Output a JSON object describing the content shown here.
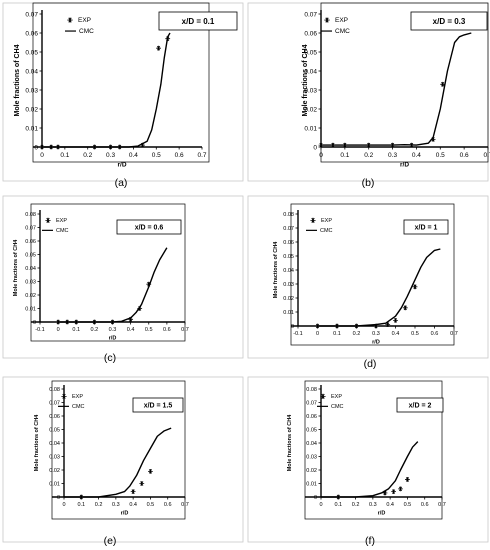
{
  "chart_data": [
    {
      "type": "line",
      "label": "(a)",
      "annotation": "x/D = 0.1",
      "ylabel": "Mole fractions of CH4",
      "xlabel": "r/D",
      "xlim": [
        0,
        0.7
      ],
      "ylim": [
        0,
        0.07
      ],
      "xticks": [
        "0",
        "0.1",
        "0.2",
        "0.3",
        "0.4",
        "0.5",
        "0.6",
        "0.7"
      ],
      "yticks": [
        "0",
        "0.01",
        "0.02",
        "0.03",
        "0.04",
        "0.05",
        "0.06",
        "0.07"
      ],
      "legend": [
        "EXP",
        "CMC"
      ],
      "legend_position": "top-left",
      "series": [
        {
          "name": "EXP",
          "marker": "star",
          "x": [
            0,
            0.04,
            0.07,
            0.23,
            0.3,
            0.34,
            0.44,
            0.51,
            0.55
          ],
          "y": [
            0,
            0,
            0,
            0,
            0,
            0,
            0.001,
            0.052,
            0.057
          ]
        },
        {
          "name": "CMC",
          "x": [
            0,
            0.1,
            0.2,
            0.3,
            0.38,
            0.42,
            0.46,
            0.48,
            0.5,
            0.52,
            0.535,
            0.55,
            0.56
          ],
          "y": [
            0,
            0,
            0,
            0,
            0,
            0.0005,
            0.003,
            0.009,
            0.02,
            0.033,
            0.047,
            0.058,
            0.06
          ]
        }
      ]
    },
    {
      "type": "line",
      "label": "(b)",
      "annotation": "x/D = 0.3",
      "ylabel": "Mole fractions of CH4",
      "xlabel": "r/D",
      "xlim": [
        0,
        0.7
      ],
      "ylim": [
        0,
        0.07
      ],
      "xticks": [
        "0",
        "0.1",
        "0.2",
        "0.3",
        "0.4",
        "0.5",
        "0.6",
        "0.7"
      ],
      "yticks": [
        "0",
        "0.01",
        "0.02",
        "0.03",
        "0.04",
        "0.05",
        "0.06",
        "0.07"
      ],
      "legend": [
        "EXP",
        "CMC"
      ],
      "legend_position": "top-left",
      "series": [
        {
          "name": "EXP",
          "marker": "star",
          "x": [
            0,
            0.05,
            0.1,
            0.2,
            0.3,
            0.38,
            0.47,
            0.51
          ],
          "y": [
            0.001,
            0.001,
            0.001,
            0.001,
            0.001,
            0.001,
            0.004,
            0.033
          ]
        },
        {
          "name": "CMC",
          "x": [
            0,
            0.1,
            0.2,
            0.3,
            0.35,
            0.4,
            0.45,
            0.47,
            0.5,
            0.53,
            0.56,
            0.58,
            0.6,
            0.63
          ],
          "y": [
            0.001,
            0.001,
            0.001,
            0.001,
            0.0012,
            0.001,
            0.002,
            0.005,
            0.02,
            0.04,
            0.055,
            0.058,
            0.059,
            0.06
          ]
        }
      ]
    },
    {
      "type": "line",
      "label": "(c)",
      "annotation": "x/D = 0.6",
      "ylabel": "Mole fractions of CH4",
      "xlabel": "r/D",
      "xlim": [
        -0.1,
        0.7
      ],
      "ylim": [
        0,
        0.08
      ],
      "xticks": [
        "-0.1",
        "0",
        "0.1",
        "0.2",
        "0.3",
        "0.4",
        "0.5",
        "0.6",
        "0.7"
      ],
      "yticks": [
        "0",
        "0.01",
        "0.02",
        "0.03",
        "0.04",
        "0.05",
        "0.06",
        "0.07",
        "0.08"
      ],
      "legend": [
        "EXP",
        "CMC"
      ],
      "legend_position": "top-left",
      "series": [
        {
          "name": "EXP",
          "marker": "star",
          "x": [
            0,
            0.05,
            0.1,
            0.2,
            0.3,
            0.4,
            0.45,
            0.5
          ],
          "y": [
            0,
            0,
            0,
            0,
            0,
            0.002,
            0.01,
            0.028
          ]
        },
        {
          "name": "CMC",
          "x": [
            0,
            0.1,
            0.2,
            0.3,
            0.35,
            0.4,
            0.43,
            0.46,
            0.5,
            0.53,
            0.56,
            0.6
          ],
          "y": [
            0,
            0,
            0,
            0,
            0.0005,
            0.003,
            0.007,
            0.013,
            0.026,
            0.037,
            0.046,
            0.055
          ]
        }
      ]
    },
    {
      "type": "line",
      "label": "(d)",
      "annotation": "x/D = 1",
      "ylabel": "Mole fractions of CH4",
      "xlabel": "r/D",
      "xlim": [
        -0.1,
        0.7
      ],
      "ylim": [
        0,
        0.08
      ],
      "xticks": [
        "-0.1",
        "0",
        "0.1",
        "0.2",
        "0.3",
        "0.4",
        "0.5",
        "0.6",
        "0.7"
      ],
      "yticks": [
        "0",
        "0.01",
        "0.02",
        "0.03",
        "0.04",
        "0.05",
        "0.06",
        "0.07",
        "0.08"
      ],
      "legend": [
        "EXP",
        "CMC"
      ],
      "legend_position": "top-left",
      "series": [
        {
          "name": "EXP",
          "marker": "star",
          "x": [
            0,
            0.1,
            0.2,
            0.3,
            0.36,
            0.4,
            0.45,
            0.5
          ],
          "y": [
            0,
            0,
            0,
            0,
            0.001,
            0.004,
            0.013,
            0.028
          ]
        },
        {
          "name": "CMC",
          "x": [
            0,
            0.1,
            0.2,
            0.3,
            0.35,
            0.4,
            0.43,
            0.46,
            0.5,
            0.53,
            0.56,
            0.6,
            0.63
          ],
          "y": [
            0,
            0,
            0,
            0.001,
            0.002,
            0.007,
            0.013,
            0.021,
            0.033,
            0.042,
            0.049,
            0.054,
            0.055
          ]
        }
      ]
    },
    {
      "type": "line",
      "label": "(e)",
      "annotation": "x/D = 1.5",
      "ylabel": "Mole fractions of CH4",
      "xlabel": "r/D",
      "xlim": [
        0,
        0.7
      ],
      "ylim": [
        0,
        0.08
      ],
      "xticks": [
        "0",
        "0.1",
        "0.2",
        "0.3",
        "0.4",
        "0.5",
        "0.6",
        "0.7"
      ],
      "yticks": [
        "0",
        "0.01",
        "0.02",
        "0.03",
        "0.04",
        "0.05",
        "0.06",
        "0.07",
        "0.08"
      ],
      "legend": [
        "EXP",
        "CMC"
      ],
      "legend_position": "top-left",
      "series": [
        {
          "name": "EXP",
          "marker": "star",
          "x": [
            0.1,
            0.4,
            0.45,
            0.5
          ],
          "y": [
            0,
            0.004,
            0.01,
            0.019
          ]
        },
        {
          "name": "CMC",
          "x": [
            0,
            0.1,
            0.2,
            0.3,
            0.35,
            0.38,
            0.42,
            0.46,
            0.5,
            0.54,
            0.58,
            0.62
          ],
          "y": [
            0,
            0,
            0,
            0.002,
            0.004,
            0.008,
            0.016,
            0.027,
            0.036,
            0.045,
            0.049,
            0.051
          ]
        }
      ]
    },
    {
      "type": "line",
      "label": "(f)",
      "annotation": "x/D = 2",
      "ylabel": "Mole fractions of CH4",
      "xlabel": "r/D",
      "xlim": [
        0,
        0.7
      ],
      "ylim": [
        0,
        0.08
      ],
      "xticks": [
        "0",
        "0.1",
        "0.2",
        "0.3",
        "0.4",
        "0.5",
        "0.6",
        "0.7"
      ],
      "yticks": [
        "0",
        "0.01",
        "0.02",
        "0.03",
        "0.04",
        "0.05",
        "0.06",
        "0.07",
        "0.08"
      ],
      "legend": [
        "EXP",
        "CMC"
      ],
      "legend_position": "top-left",
      "series": [
        {
          "name": "EXP",
          "marker": "star",
          "x": [
            0.1,
            0.37,
            0.42,
            0.46,
            0.5
          ],
          "y": [
            0,
            0.003,
            0.004,
            0.006,
            0.013
          ]
        },
        {
          "name": "CMC",
          "x": [
            0,
            0.1,
            0.2,
            0.3,
            0.35,
            0.39,
            0.43,
            0.46,
            0.5,
            0.53,
            0.56
          ],
          "y": [
            0,
            0,
            0,
            0.001,
            0.003,
            0.006,
            0.012,
            0.02,
            0.03,
            0.037,
            0.041
          ]
        }
      ]
    }
  ]
}
